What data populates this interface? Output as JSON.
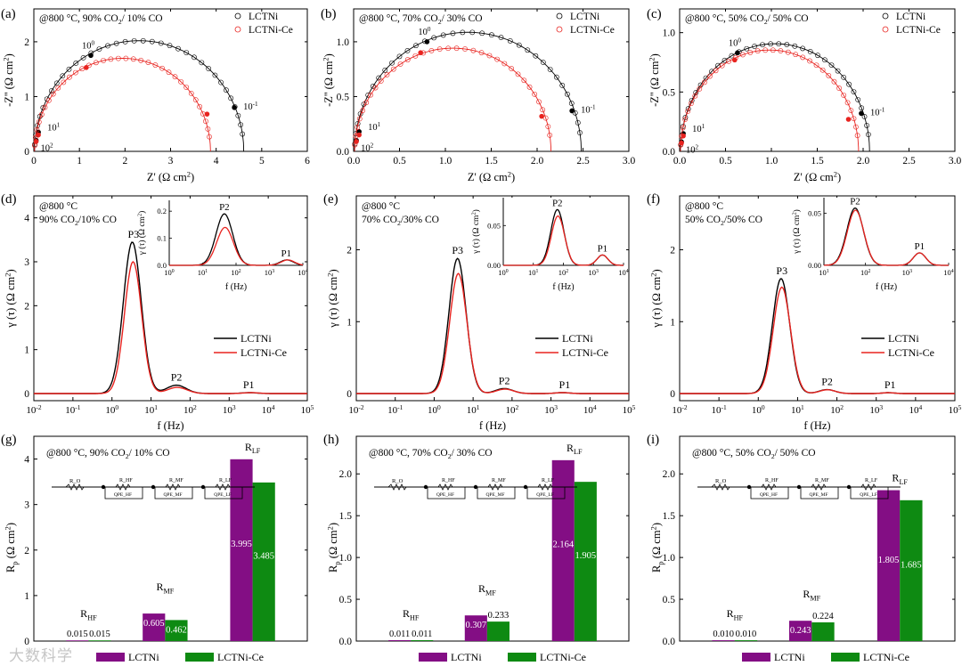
{
  "figure": {
    "watermark": "大数科学"
  },
  "chart_data": [
    {
      "id": "a",
      "type": "scatter",
      "panel_label": "(a)",
      "condition": "@800 °C, 90% CO2/ 10% CO",
      "xlabel": "Z' (Ω cm2)",
      "ylabel": "-Z'' (Ω cm2)",
      "xlim": [
        0,
        6
      ],
      "ylim": [
        0,
        2.6
      ],
      "xticks": [
        0,
        1,
        2,
        3,
        4,
        5,
        6
      ],
      "xticklabels": [
        "0",
        "1",
        "2",
        "3",
        "4",
        "5",
        "6"
      ],
      "yticks": [
        0,
        1,
        2
      ],
      "yticklabels": [
        "0",
        "1",
        "2"
      ],
      "legend": [
        "LCTNi",
        "LCTNi-Ce"
      ],
      "series": [
        {
          "name": "LCTNi",
          "color": "#000000",
          "r0": 0.015,
          "rp": 4.59,
          "markers": [
            {
              "x": 0.05,
              "y": 0.2,
              "label": "10^2"
            },
            {
              "x": 0.1,
              "y": 0.35,
              "label": "10^1"
            },
            {
              "x": 1.25,
              "y": 1.75,
              "label": "10^0"
            },
            {
              "x": 4.4,
              "y": 0.8,
              "label": "10^-1"
            }
          ]
        },
        {
          "name": "LCTNi-Ce",
          "color": "#e8231f",
          "r0": 0.015,
          "rp": 3.86,
          "markers": [
            {
              "x": 0.05,
              "y": 0.18
            },
            {
              "x": 0.1,
              "y": 0.3
            },
            {
              "x": 1.15,
              "y": 1.53
            },
            {
              "x": 3.8,
              "y": 0.68
            }
          ]
        }
      ]
    },
    {
      "id": "b",
      "type": "scatter",
      "panel_label": "(b)",
      "condition": "@800 °C, 70% CO2/ 30% CO",
      "xlabel": "Z' (Ω cm2)",
      "ylabel": "-Z'' (Ω cm2)",
      "xlim": [
        0,
        3.0
      ],
      "ylim": [
        0,
        1.3
      ],
      "xticks": [
        0,
        0.5,
        1.0,
        1.5,
        2.0,
        2.5,
        3.0
      ],
      "xticklabels": [
        "0.0",
        "0.5",
        "1.0",
        "1.5",
        "2.0",
        "2.5",
        "3.0"
      ],
      "yticks": [
        0,
        0.5,
        1.0
      ],
      "yticklabels": [
        "0.0",
        "0.5",
        "1.0"
      ],
      "legend": [
        "LCTNi",
        "LCTNi-Ce"
      ],
      "series": [
        {
          "name": "LCTNi",
          "color": "#000000",
          "r0": 0.011,
          "rp": 2.47,
          "markers": [
            {
              "x": 0.03,
              "y": 0.1,
              "label": "10^2"
            },
            {
              "x": 0.06,
              "y": 0.18,
              "label": "10^1"
            },
            {
              "x": 0.8,
              "y": 1.0,
              "label": "10^0"
            },
            {
              "x": 2.38,
              "y": 0.37,
              "label": "10^-1"
            }
          ]
        },
        {
          "name": "LCTNi-Ce",
          "color": "#e8231f",
          "r0": 0.011,
          "rp": 2.14,
          "markers": [
            {
              "x": 0.03,
              "y": 0.09
            },
            {
              "x": 0.06,
              "y": 0.15
            },
            {
              "x": 0.73,
              "y": 0.9
            },
            {
              "x": 2.05,
              "y": 0.32
            }
          ]
        }
      ]
    },
    {
      "id": "c",
      "type": "scatter",
      "panel_label": "(c)",
      "condition": "@800 °C, 50% CO2/ 50% CO",
      "xlabel": "Z' (Ω cm2)",
      "ylabel": "-Z'' (Ω cm2)",
      "xlim": [
        0,
        3.0
      ],
      "ylim": [
        0,
        1.2
      ],
      "xticks": [
        0,
        0.5,
        1.0,
        1.5,
        2.0,
        2.5,
        3.0
      ],
      "xticklabels": [
        "0.0",
        "0.5",
        "1.0",
        "1.5",
        "2.0",
        "2.5",
        "3.0"
      ],
      "yticks": [
        0,
        0.5,
        1.0
      ],
      "yticklabels": [
        "0.0",
        "0.5",
        "1.0"
      ],
      "legend": [
        "LCTNi",
        "LCTNi-Ce"
      ],
      "series": [
        {
          "name": "LCTNi",
          "color": "#000000",
          "r0": 0.01,
          "rp": 2.06,
          "markers": [
            {
              "x": 0.02,
              "y": 0.08,
              "label": "10^2"
            },
            {
              "x": 0.04,
              "y": 0.15,
              "label": "10^1"
            },
            {
              "x": 0.63,
              "y": 0.83,
              "label": "10^0"
            },
            {
              "x": 1.98,
              "y": 0.32,
              "label": "10^-1"
            }
          ]
        },
        {
          "name": "LCTNi-Ce",
          "color": "#e8231f",
          "r0": 0.01,
          "rp": 1.94,
          "markers": [
            {
              "x": 0.02,
              "y": 0.07
            },
            {
              "x": 0.04,
              "y": 0.13
            },
            {
              "x": 0.6,
              "y": 0.77
            },
            {
              "x": 1.84,
              "y": 0.27
            }
          ]
        }
      ]
    },
    {
      "id": "d",
      "type": "line",
      "panel_label": "(d)",
      "condition_lines": [
        "@800 °C",
        "90% CO2/10% CO"
      ],
      "xlabel": "f (Hz)",
      "ylabel": "γ (τ) (Ω cm2)",
      "xscale": "log",
      "xlim_exp": [
        -2,
        5
      ],
      "ylim": [
        0,
        4.5
      ],
      "xticklabels": [
        "10^-2",
        "10^-1",
        "10^0",
        "10^1",
        "10^2",
        "10^3",
        "10^4",
        "10^5"
      ],
      "yticks": [
        0,
        1,
        2,
        3,
        4
      ],
      "yticklabels": [
        "0",
        "1",
        "2",
        "3",
        "4"
      ],
      "legend": [
        "LCTNi",
        "LCTNi-Ce"
      ],
      "peak_labels": [
        {
          "text": "P3",
          "logf": 0.55,
          "y": 3.45
        },
        {
          "text": "P2",
          "logf": 1.65,
          "y": 0.19
        },
        {
          "text": "P1",
          "logf": 3.5,
          "y": 0.02
        }
      ],
      "series": [
        {
          "name": "LCTNi",
          "color": "#000000",
          "peaks": [
            {
              "c": 0.52,
              "w": 0.23,
              "h": 3.45
            },
            {
              "c": 1.65,
              "w": 0.25,
              "h": 0.19
            },
            {
              "c": 3.52,
              "w": 0.2,
              "h": 0.02
            }
          ]
        },
        {
          "name": "LCTNi-Ce",
          "color": "#e8231f",
          "peaks": [
            {
              "c": 0.54,
              "w": 0.22,
              "h": 3.0
            },
            {
              "c": 1.67,
              "w": 0.25,
              "h": 0.14
            },
            {
              "c": 3.55,
              "w": 0.2,
              "h": 0.02
            }
          ]
        }
      ],
      "inset": {
        "xlim_exp": [
          0,
          4
        ],
        "ylim": [
          0,
          0.24
        ],
        "xticklabels": [
          "10^0",
          "10^1",
          "10^2",
          "10^3",
          "10^4"
        ],
        "yticks": [
          0,
          0.1,
          0.2
        ],
        "yticklabels": [
          "0.0",
          "0.1",
          "0.2"
        ],
        "xlabel": "f (Hz)",
        "ylabel": "γ (τ) (Ω cm2)",
        "labels": [
          {
            "text": "P2",
            "logf": 1.65,
            "y": 0.19
          },
          {
            "text": "P1",
            "logf": 3.5,
            "y": 0.02
          }
        ]
      }
    },
    {
      "id": "e",
      "type": "line",
      "panel_label": "(e)",
      "condition_lines": [
        "@800 °C",
        "70% CO2/30% CO"
      ],
      "xlabel": "f (Hz)",
      "ylabel": "γ (τ) (Ω cm2)",
      "xscale": "log",
      "xlim_exp": [
        -2,
        5
      ],
      "ylim": [
        0,
        2.75
      ],
      "xticklabels": [
        "10^-2",
        "10^-1",
        "10^0",
        "10^1",
        "10^2",
        "10^3",
        "10^4",
        "10^5"
      ],
      "yticks": [
        0,
        1,
        2
      ],
      "yticklabels": [
        "0",
        "1",
        "2"
      ],
      "legend": [
        "LCTNi",
        "LCTNi-Ce"
      ],
      "peak_labels": [
        {
          "text": "P3",
          "logf": 0.6,
          "y": 1.88
        },
        {
          "text": "P2",
          "logf": 1.8,
          "y": 0.07
        },
        {
          "text": "P1",
          "logf": 3.35,
          "y": 0.015
        }
      ],
      "series": [
        {
          "name": "LCTNi",
          "color": "#000000",
          "peaks": [
            {
              "c": 0.6,
              "w": 0.22,
              "h": 1.88
            },
            {
              "c": 1.8,
              "w": 0.22,
              "h": 0.07
            },
            {
              "c": 3.3,
              "w": 0.18,
              "h": 0.013
            }
          ]
        },
        {
          "name": "LCTNi-Ce",
          "color": "#e8231f",
          "peaks": [
            {
              "c": 0.62,
              "w": 0.22,
              "h": 1.67
            },
            {
              "c": 1.82,
              "w": 0.22,
              "h": 0.062
            },
            {
              "c": 3.3,
              "w": 0.18,
              "h": 0.013
            }
          ]
        }
      ],
      "inset": {
        "xlim_exp": [
          0,
          4
        ],
        "ylim": [
          0,
          0.085
        ],
        "xticklabels": [
          "10^0",
          "10^1",
          "10^2",
          "10^3",
          "10^4"
        ],
        "yticks": [
          0,
          0.05
        ],
        "yticklabels": [
          "0.00",
          "0.05"
        ],
        "xlabel": "f (Hz)",
        "ylabel": "γ (τ) (Ω cm2)",
        "labels": [
          {
            "text": "P2",
            "logf": 1.8,
            "y": 0.07
          },
          {
            "text": "P1",
            "logf": 3.3,
            "y": 0.013
          }
        ]
      }
    },
    {
      "id": "f",
      "type": "line",
      "panel_label": "(f)",
      "condition_lines": [
        "@800 °C",
        "50% CO2/50% CO"
      ],
      "xlabel": "f (Hz)",
      "ylabel": "γ (τ) (Ω cm2)",
      "xscale": "log",
      "xlim_exp": [
        -2,
        5
      ],
      "ylim": [
        0,
        2.75
      ],
      "xticklabels": [
        "10^-2",
        "10^-1",
        "10^0",
        "10^1",
        "10^2",
        "10^3",
        "10^4",
        "10^5"
      ],
      "yticks": [
        0,
        1,
        2
      ],
      "yticklabels": [
        "0",
        "1",
        "2"
      ],
      "legend": [
        "LCTNi",
        "LCTNi-Ce"
      ],
      "peak_labels": [
        {
          "text": "P3",
          "logf": 0.6,
          "y": 1.6
        },
        {
          "text": "P2",
          "logf": 1.75,
          "y": 0.055
        },
        {
          "text": "P1",
          "logf": 3.35,
          "y": 0.012
        }
      ],
      "series": [
        {
          "name": "LCTNi",
          "color": "#000000",
          "peaks": [
            {
              "c": 0.58,
              "w": 0.22,
              "h": 1.6
            },
            {
              "c": 1.75,
              "w": 0.2,
              "h": 0.055
            },
            {
              "c": 3.3,
              "w": 0.15,
              "h": 0.012
            }
          ]
        },
        {
          "name": "LCTNi-Ce",
          "color": "#e8231f",
          "peaks": [
            {
              "c": 0.6,
              "w": 0.22,
              "h": 1.48
            },
            {
              "c": 1.76,
              "w": 0.2,
              "h": 0.053
            },
            {
              "c": 3.3,
              "w": 0.15,
              "h": 0.012
            }
          ]
        }
      ],
      "inset": {
        "xlim_exp": [
          1,
          4
        ],
        "ylim": [
          0,
          0.065
        ],
        "xticklabels": [
          "10^1",
          "10^2",
          "10^3",
          "10^4"
        ],
        "yticks": [
          0,
          0.05
        ],
        "yticklabels": [
          "0.00",
          "0.05"
        ],
        "xlabel": "f (Hz)",
        "ylabel": "γ (τ) (Ω cm2)",
        "labels": [
          {
            "text": "P2",
            "logf": 1.75,
            "y": 0.055
          },
          {
            "text": "P1",
            "logf": 3.3,
            "y": 0.012
          }
        ]
      }
    },
    {
      "id": "g",
      "type": "bar",
      "panel_label": "(g)",
      "condition": "@800 °C, 90% CO2/ 10% CO",
      "ylabel": "Rp (Ω cm2)",
      "ylim": [
        0,
        4.5
      ],
      "yticks": [
        0,
        1,
        2,
        3,
        4
      ],
      "yticklabels": [
        "0",
        "1",
        "2",
        "3",
        "4"
      ],
      "categories": [
        "RHF",
        "RMF",
        "RLF"
      ],
      "series": [
        {
          "name": "LCTNi",
          "color": "#830e84",
          "values": [
            0.015,
            0.605,
            3.995
          ],
          "value_labels": [
            "0.015",
            "0.605",
            "3.995"
          ]
        },
        {
          "name": "LCTNi-Ce",
          "color": "#0e8a12",
          "values": [
            0.015,
            0.462,
            3.485
          ],
          "value_labels": [
            "0.015",
            "0.462",
            "3.485"
          ]
        }
      ],
      "legend": [
        "LCTNi",
        "LCTNi-Ce"
      ],
      "circuit": [
        "R_O",
        "R_HF",
        "R_MF",
        "R_LF",
        "QPE_HF",
        "QPE_MF",
        "QPE_LF"
      ]
    },
    {
      "id": "h",
      "type": "bar",
      "panel_label": "(h)",
      "condition": "@800 °C, 70% CO2/ 30% CO",
      "ylabel": "Rp (Ω cm2)",
      "ylim": [
        0,
        2.45
      ],
      "yticks": [
        0,
        0.5,
        1.0,
        1.5,
        2.0
      ],
      "yticklabels": [
        "0.0",
        "0.5",
        "1.0",
        "1.5",
        "2.0"
      ],
      "categories": [
        "RHF",
        "RMF",
        "RLF"
      ],
      "series": [
        {
          "name": "LCTNi",
          "color": "#830e84",
          "values": [
            0.011,
            0.307,
            2.164
          ],
          "value_labels": [
            "0.011",
            "0.307",
            "2.164"
          ]
        },
        {
          "name": "LCTNi-Ce",
          "color": "#0e8a12",
          "values": [
            0.011,
            0.233,
            1.905
          ],
          "value_labels": [
            "0.011",
            "0.233",
            "1.905"
          ]
        }
      ],
      "legend": [
        "LCTNi",
        "LCTNi-Ce"
      ],
      "circuit": [
        "R_O",
        "R_HF",
        "R_MF",
        "R_LF",
        "QPE_HF",
        "QPE_MF",
        "QPE_LF"
      ]
    },
    {
      "id": "i",
      "type": "bar",
      "panel_label": "(i)",
      "condition": "@800 °C, 50% CO2/ 50% CO",
      "ylabel": "Rp (Ω cm2)",
      "ylim": [
        0,
        2.45
      ],
      "yticks": [
        0,
        0.5,
        1.0,
        1.5,
        2.0
      ],
      "yticklabels": [
        "0.0",
        "0.5",
        "1.0",
        "1.5",
        "2.0"
      ],
      "categories": [
        "RHF",
        "RMF",
        "RLF"
      ],
      "series": [
        {
          "name": "LCTNi",
          "color": "#830e84",
          "values": [
            0.01,
            0.243,
            1.805
          ],
          "value_labels": [
            "0.010",
            "0.243",
            "1.805"
          ]
        },
        {
          "name": "LCTNi-Ce",
          "color": "#0e8a12",
          "values": [
            0.01,
            0.224,
            1.685
          ],
          "value_labels": [
            "0.010",
            "0.224",
            "1.685"
          ]
        }
      ],
      "legend": [
        "LCTNi",
        "LCTNi-Ce"
      ],
      "circuit": [
        "R_O",
        "R_HF",
        "R_MF",
        "R_LF",
        "QPE_HF",
        "QPE_MF",
        "QPE_LF"
      ]
    }
  ]
}
